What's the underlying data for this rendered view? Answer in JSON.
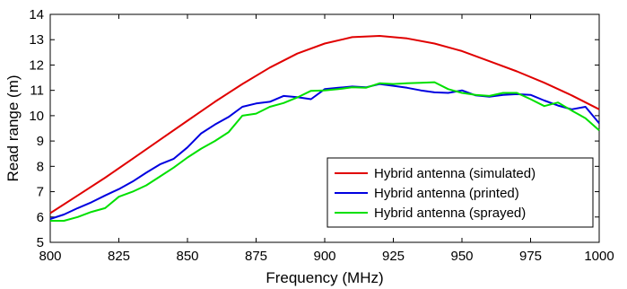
{
  "chart_data": {
    "type": "line",
    "xlabel": "Frequency (MHz)",
    "ylabel": "Read range (m)",
    "xlim": [
      800,
      1000
    ],
    "ylim": [
      5,
      14
    ],
    "xticks": [
      800,
      825,
      850,
      875,
      900,
      925,
      950,
      975,
      1000
    ],
    "yticks": [
      5,
      6,
      7,
      8,
      9,
      10,
      11,
      12,
      13,
      14
    ],
    "grid": false,
    "legend_position": "bottom-right",
    "series": [
      {
        "name": "Hybrid antenna (simulated)",
        "color": "#e00000",
        "points": [
          [
            800,
            6.15
          ],
          [
            810,
            6.85
          ],
          [
            820,
            7.55
          ],
          [
            830,
            8.3
          ],
          [
            840,
            9.05
          ],
          [
            850,
            9.8
          ],
          [
            860,
            10.55
          ],
          [
            870,
            11.25
          ],
          [
            880,
            11.9
          ],
          [
            890,
            12.45
          ],
          [
            900,
            12.85
          ],
          [
            910,
            13.1
          ],
          [
            920,
            13.15
          ],
          [
            930,
            13.05
          ],
          [
            940,
            12.85
          ],
          [
            950,
            12.55
          ],
          [
            960,
            12.15
          ],
          [
            970,
            11.75
          ],
          [
            980,
            11.3
          ],
          [
            990,
            10.8
          ],
          [
            1000,
            10.25
          ]
        ]
      },
      {
        "name": "Hybrid antenna (printed)",
        "color": "#0000e0",
        "points": [
          [
            800,
            5.92
          ],
          [
            805,
            6.1
          ],
          [
            810,
            6.35
          ],
          [
            815,
            6.58
          ],
          [
            820,
            6.85
          ],
          [
            825,
            7.1
          ],
          [
            830,
            7.4
          ],
          [
            835,
            7.75
          ],
          [
            840,
            8.08
          ],
          [
            845,
            8.3
          ],
          [
            850,
            8.75
          ],
          [
            855,
            9.3
          ],
          [
            860,
            9.65
          ],
          [
            865,
            9.95
          ],
          [
            870,
            10.35
          ],
          [
            875,
            10.48
          ],
          [
            880,
            10.55
          ],
          [
            885,
            10.78
          ],
          [
            890,
            10.73
          ],
          [
            895,
            10.65
          ],
          [
            900,
            11.05
          ],
          [
            905,
            11.1
          ],
          [
            910,
            11.15
          ],
          [
            915,
            11.12
          ],
          [
            920,
            11.25
          ],
          [
            925,
            11.18
          ],
          [
            930,
            11.1
          ],
          [
            935,
            11.0
          ],
          [
            940,
            10.92
          ],
          [
            945,
            10.9
          ],
          [
            950,
            11.0
          ],
          [
            955,
            10.8
          ],
          [
            960,
            10.75
          ],
          [
            965,
            10.82
          ],
          [
            970,
            10.85
          ],
          [
            975,
            10.82
          ],
          [
            980,
            10.6
          ],
          [
            985,
            10.4
          ],
          [
            990,
            10.25
          ],
          [
            995,
            10.35
          ],
          [
            1000,
            9.7
          ]
        ]
      },
      {
        "name": "Hybrid antenna (sprayed)",
        "color": "#00e000",
        "points": [
          [
            800,
            5.85
          ],
          [
            805,
            5.85
          ],
          [
            810,
            6.0
          ],
          [
            815,
            6.2
          ],
          [
            820,
            6.35
          ],
          [
            825,
            6.8
          ],
          [
            830,
            7.0
          ],
          [
            835,
            7.25
          ],
          [
            840,
            7.6
          ],
          [
            845,
            7.95
          ],
          [
            850,
            8.35
          ],
          [
            855,
            8.7
          ],
          [
            860,
            9.0
          ],
          [
            865,
            9.35
          ],
          [
            870,
            10.0
          ],
          [
            875,
            10.08
          ],
          [
            880,
            10.35
          ],
          [
            885,
            10.5
          ],
          [
            890,
            10.72
          ],
          [
            895,
            10.98
          ],
          [
            900,
            11.0
          ],
          [
            905,
            11.05
          ],
          [
            910,
            11.12
          ],
          [
            915,
            11.1
          ],
          [
            920,
            11.28
          ],
          [
            925,
            11.25
          ],
          [
            930,
            11.28
          ],
          [
            935,
            11.3
          ],
          [
            940,
            11.32
          ],
          [
            945,
            11.05
          ],
          [
            950,
            10.9
          ],
          [
            955,
            10.82
          ],
          [
            960,
            10.78
          ],
          [
            965,
            10.9
          ],
          [
            970,
            10.9
          ],
          [
            975,
            10.65
          ],
          [
            980,
            10.38
          ],
          [
            985,
            10.52
          ],
          [
            990,
            10.2
          ],
          [
            995,
            9.9
          ],
          [
            1000,
            9.42
          ]
        ]
      }
    ]
  }
}
